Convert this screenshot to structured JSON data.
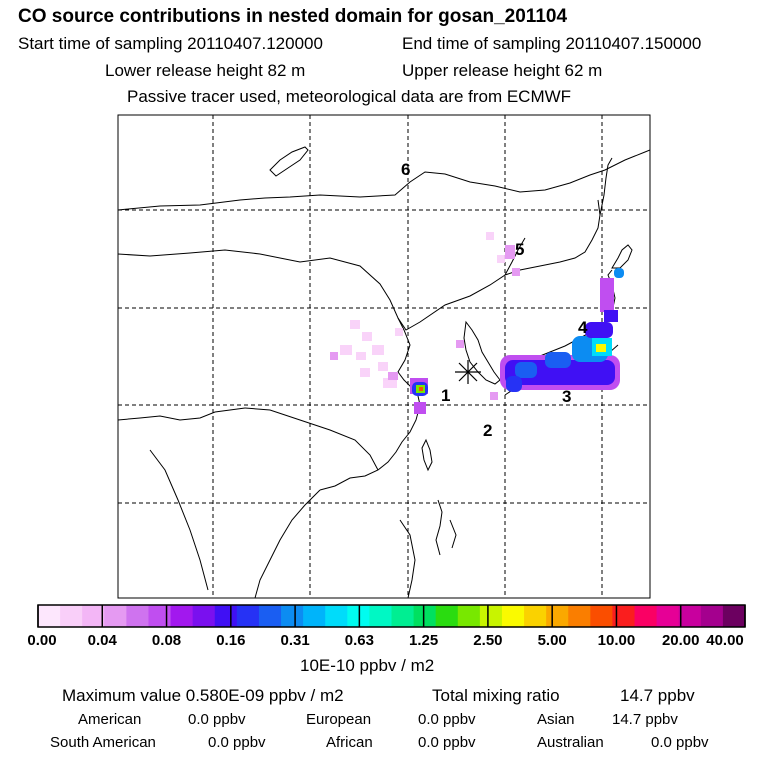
{
  "header": {
    "title": "CO  source contributions in nested domain for gosan_201104",
    "start_label": "Start time of sampling 20110407.120000",
    "end_label": "End time of sampling 20110407.150000",
    "lower_label": "Lower release height   82 m",
    "upper_label": "Upper release height   62 m",
    "note": "Passive tracer used, meteorological data are from ECMWF"
  },
  "map": {
    "region_labels": [
      "1",
      "2",
      "3",
      "4",
      "5",
      "6"
    ],
    "receptor_marker": "asterisk"
  },
  "colorbar": {
    "colors": [
      "#fde7fd",
      "#f9cff9",
      "#f3b6f6",
      "#e59af2",
      "#cf73ef",
      "#c04ef0",
      "#a218ee",
      "#7a10ef",
      "#4010f4",
      "#2632f5",
      "#1a5ef2",
      "#0c8cf2",
      "#00b4fa",
      "#00dcfa",
      "#00fcf0",
      "#00f8c4",
      "#00ee92",
      "#00e060",
      "#2adc10",
      "#78e800",
      "#c8f400",
      "#fafa00",
      "#fad200",
      "#faa800",
      "#fa7e00",
      "#fa4e00",
      "#fa1e1e",
      "#fa0064",
      "#e60096",
      "#c8009e",
      "#a4008e",
      "#6c0060"
    ],
    "ticks": [
      "0.00",
      "0.04",
      "0.08",
      "0.16",
      "0.31",
      "0.63",
      "1.25",
      "2.50",
      "5.00",
      "10.00",
      "20.00",
      "40.00"
    ],
    "unit": "10E-10 ppbv / m2"
  },
  "summary": {
    "max_label": "Maximum value  0.580E-09 ppbv / m2",
    "total_label": "Total mixing ratio",
    "total_value": "14.7 ppbv",
    "american_label": "American",
    "american_value": "0.0 ppbv",
    "european_label": "European",
    "european_value": "0.0 ppbv",
    "asian_label": "Asian",
    "asian_value": "14.7 ppbv",
    "south_american_label": "South American",
    "south_american_value": "0.0 ppbv",
    "african_label": "African",
    "african_value": "0.0 ppbv",
    "australian_label": "Australian",
    "australian_value": "0.0 ppbv"
  }
}
